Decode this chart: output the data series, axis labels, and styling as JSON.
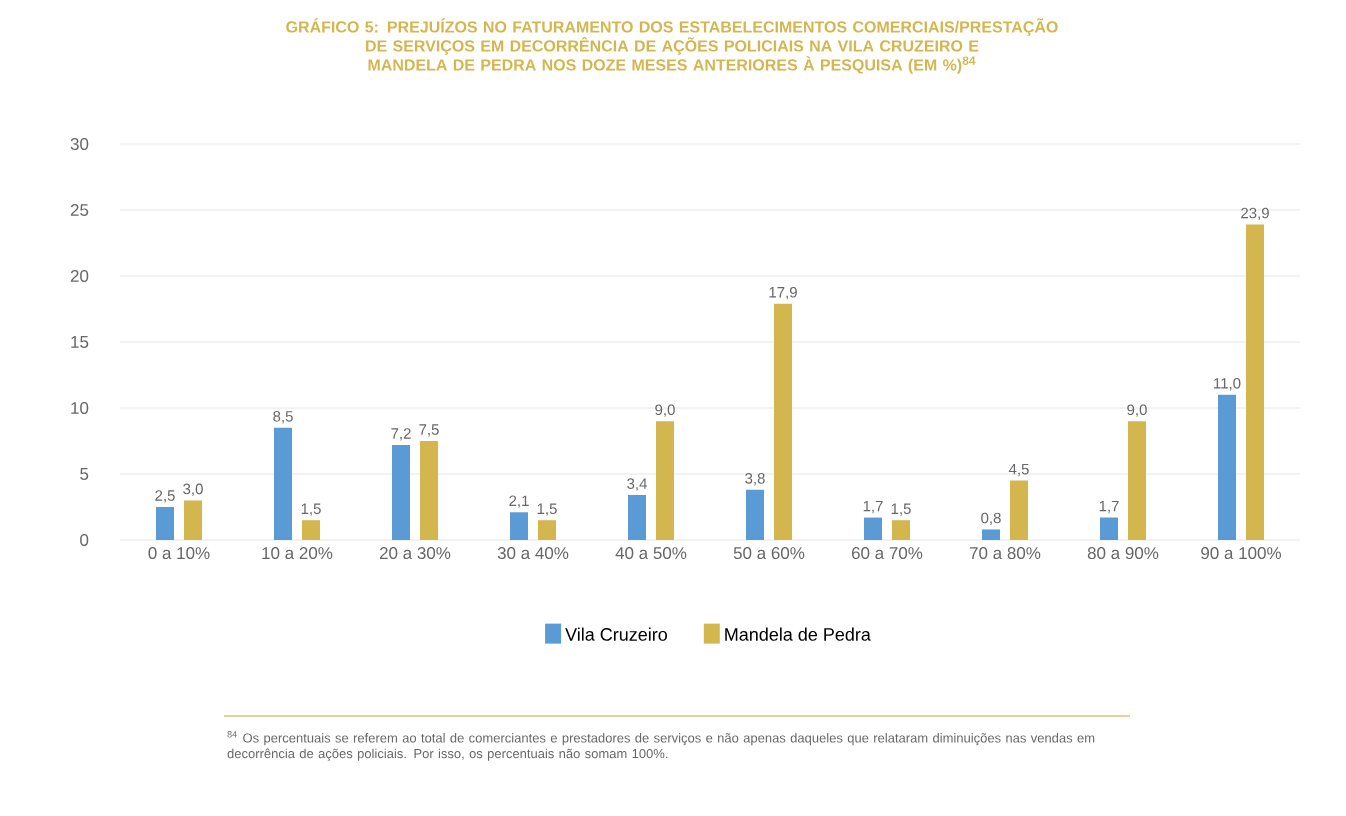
{
  "chart_data": {
    "type": "bar",
    "title": "GRÁFICO 5: PREJUÍZOS NO FATURAMENTO DOS ESTABELECIMENTOS COMERCIAIS/PRESTAÇÃO DE SERVIÇOS EM DECORRÊNCIA DE AÇÕES POLICIAIS NA VILA CRUZEIRO E MANDELA DE PEDRA NOS DOZE MESES ANTERIORES À PESQUISA (EM %)$^{84}$",
    "categories": [
      "0 a 10%",
      "10 a 20%",
      "20 a 30%",
      "30 a 40%",
      "40 a 50%",
      "50 a 60%",
      "60 a 70%",
      "70 a 80%",
      "80 a 90%",
      "90 a 100%"
    ],
    "series": [
      {
        "name": "Vila Cruzeiro",
        "color": "#5b9bd5",
        "values": [
          2.5,
          8.5,
          7.2,
          2.1,
          3.4,
          3.8,
          1.7,
          0.8,
          1.7,
          11.0
        ],
        "value_labels": [
          "2,5",
          "8,5",
          "7,2",
          "2,1",
          "3,4",
          "3,8",
          "1,7",
          "0,8",
          "1,7",
          "11,0"
        ]
      },
      {
        "name": "Mandela de Pedra",
        "color": "#d4b64f",
        "values": [
          3.0,
          1.5,
          7.5,
          1.5,
          9.0,
          17.9,
          1.5,
          4.5,
          9.0,
          23.9
        ],
        "value_labels": [
          "3,0",
          "1,5",
          "7,5",
          "1,5",
          "9,0",
          "17,9",
          "1,5",
          "4,5",
          "9,0",
          "23,9"
        ]
      }
    ],
    "ylim": [
      0,
      30
    ],
    "yticks": [
      0,
      5,
      10,
      15,
      20,
      25,
      30
    ],
    "grid": "y",
    "legend": "bottom",
    "annotations": [
      "$^{84}$ Os percentuais se referem ao total de comerciantes e prestadores de serviços e não apenas daqueles que relataram diminuições nas vendas em decorrência de ações policiais. Por isso, os percentuais não somam 100%."
    ]
  }
}
